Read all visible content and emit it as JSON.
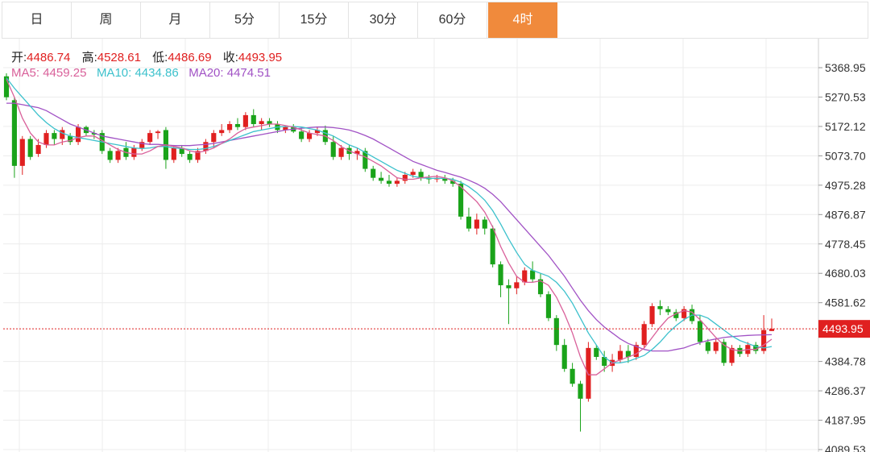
{
  "tabs": [
    {
      "label": "日",
      "active": false
    },
    {
      "label": "周",
      "active": false
    },
    {
      "label": "月",
      "active": false
    },
    {
      "label": "5分",
      "active": false
    },
    {
      "label": "15分",
      "active": false
    },
    {
      "label": "30分",
      "active": false
    },
    {
      "label": "60分",
      "active": false
    },
    {
      "label": "4时",
      "active": true
    }
  ],
  "ohlc": {
    "open_label": "开:",
    "open": "4486.74",
    "high_label": "高:",
    "high": "4528.61",
    "low_label": "低:",
    "low": "4486.69",
    "close_label": "收:",
    "close": "4493.95"
  },
  "ma": {
    "ma5_label": "MA5: ",
    "ma5": "4459.25",
    "ma5_color": "#d9609a",
    "ma10_label": "MA10: ",
    "ma10": "4434.86",
    "ma10_color": "#3cc1cc",
    "ma20_label": "MA20: ",
    "ma20": "4474.51",
    "ma20_color": "#a152c5"
  },
  "colors": {
    "up": "#e02020",
    "down": "#1aa31a",
    "accent": "#f08a3c"
  },
  "chart_data": {
    "type": "candlestick",
    "ylim": [
      4089.53,
      5418
    ],
    "y_ticks": [
      "5368.95",
      "5270.53",
      "5172.12",
      "5073.70",
      "4975.28",
      "4876.87",
      "4778.45",
      "4680.03",
      "4581.62",
      "4384.78",
      "4286.37",
      "4187.95",
      "4089.53"
    ],
    "current_price": "4493.95",
    "candles": [
      [
        5340,
        5350,
        5260,
        5270
      ],
      [
        5260,
        5270,
        5000,
        5040
      ],
      [
        5040,
        5140,
        5010,
        5130
      ],
      [
        5130,
        5140,
        5060,
        5070
      ],
      [
        5080,
        5130,
        5070,
        5110
      ],
      [
        5110,
        5160,
        5100,
        5150
      ],
      [
        5150,
        5160,
        5110,
        5130
      ],
      [
        5130,
        5170,
        5110,
        5160
      ],
      [
        5140,
        5150,
        5110,
        5120
      ],
      [
        5120,
        5180,
        5110,
        5170
      ],
      [
        5170,
        5175,
        5140,
        5150
      ],
      [
        5150,
        5160,
        5130,
        5145
      ],
      [
        5150,
        5160,
        5080,
        5090
      ],
      [
        5090,
        5100,
        5050,
        5060
      ],
      [
        5060,
        5100,
        5050,
        5090
      ],
      [
        5100,
        5120,
        5060,
        5070
      ],
      [
        5070,
        5110,
        5060,
        5100
      ],
      [
        5100,
        5130,
        5090,
        5120
      ],
      [
        5120,
        5160,
        5110,
        5150
      ],
      [
        5150,
        5160,
        5130,
        5155
      ],
      [
        5160,
        5170,
        5030,
        5060
      ],
      [
        5060,
        5110,
        5050,
        5100
      ],
      [
        5100,
        5110,
        5070,
        5080
      ],
      [
        5080,
        5090,
        5050,
        5060
      ],
      [
        5060,
        5100,
        5050,
        5090
      ],
      [
        5090,
        5130,
        5080,
        5120
      ],
      [
        5120,
        5160,
        5100,
        5150
      ],
      [
        5150,
        5180,
        5140,
        5160
      ],
      [
        5160,
        5190,
        5150,
        5180
      ],
      [
        5180,
        5200,
        5160,
        5170
      ],
      [
        5170,
        5220,
        5160,
        5210
      ],
      [
        5210,
        5230,
        5170,
        5180
      ],
      [
        5180,
        5200,
        5160,
        5190
      ],
      [
        5190,
        5200,
        5170,
        5180
      ],
      [
        5180,
        5190,
        5150,
        5160
      ],
      [
        5160,
        5175,
        5150,
        5170
      ],
      [
        5170,
        5180,
        5150,
        5155
      ],
      [
        5155,
        5165,
        5120,
        5130
      ],
      [
        5130,
        5160,
        5120,
        5150
      ],
      [
        5150,
        5170,
        5140,
        5160
      ],
      [
        5160,
        5175,
        5110,
        5120
      ],
      [
        5120,
        5140,
        5060,
        5070
      ],
      [
        5070,
        5110,
        5060,
        5100
      ],
      [
        5100,
        5110,
        5060,
        5080
      ],
      [
        5080,
        5100,
        5060,
        5090
      ],
      [
        5090,
        5100,
        5020,
        5030
      ],
      [
        5030,
        5040,
        4990,
        5000
      ],
      [
        5000,
        5020,
        4980,
        4990
      ],
      [
        4990,
        5010,
        4970,
        4980
      ],
      [
        4980,
        5000,
        4970,
        4990
      ],
      [
        4990,
        5020,
        4980,
        5010
      ],
      [
        5010,
        5030,
        5000,
        5020
      ],
      [
        5020,
        5030,
        4990,
        5000
      ],
      [
        5000,
        5010,
        4980,
        4995
      ],
      [
        4995,
        5010,
        4985,
        5000
      ],
      [
        5000,
        5010,
        4980,
        4990
      ],
      [
        4990,
        5000,
        4970,
        4980
      ],
      [
        4980,
        4990,
        4860,
        4870
      ],
      [
        4870,
        4900,
        4820,
        4830
      ],
      [
        4830,
        4880,
        4810,
        4860
      ],
      [
        4860,
        4870,
        4810,
        4830
      ],
      [
        4830,
        4840,
        4700,
        4710
      ],
      [
        4710,
        4720,
        4600,
        4640
      ],
      [
        4640,
        4660,
        4510,
        4630
      ],
      [
        4630,
        4670,
        4610,
        4650
      ],
      [
        4650,
        4700,
        4640,
        4690
      ],
      [
        4690,
        4720,
        4650,
        4660
      ],
      [
        4660,
        4680,
        4600,
        4610
      ],
      [
        4610,
        4620,
        4520,
        4530
      ],
      [
        4530,
        4540,
        4420,
        4440
      ],
      [
        4440,
        4460,
        4350,
        4360
      ],
      [
        4360,
        4380,
        4300,
        4310
      ],
      [
        4310,
        4320,
        4150,
        4260
      ],
      [
        4260,
        4450,
        4250,
        4430
      ],
      [
        4430,
        4440,
        4390,
        4400
      ],
      [
        4400,
        4420,
        4350,
        4370
      ],
      [
        4370,
        4410,
        4350,
        4390
      ],
      [
        4390,
        4440,
        4380,
        4420
      ],
      [
        4420,
        4440,
        4380,
        4400
      ],
      [
        4400,
        4450,
        4390,
        4440
      ],
      [
        4440,
        4520,
        4430,
        4510
      ],
      [
        4510,
        4580,
        4500,
        4570
      ],
      [
        4570,
        4590,
        4540,
        4560
      ],
      [
        4560,
        4570,
        4540,
        4550
      ],
      [
        4550,
        4560,
        4520,
        4530
      ],
      [
        4530,
        4570,
        4520,
        4560
      ],
      [
        4560,
        4575,
        4510,
        4520
      ],
      [
        4520,
        4540,
        4440,
        4450
      ],
      [
        4450,
        4460,
        4410,
        4420
      ],
      [
        4420,
        4460,
        4410,
        4450
      ],
      [
        4450,
        4460,
        4370,
        4380
      ],
      [
        4380,
        4440,
        4370,
        4430
      ],
      [
        4430,
        4440,
        4400,
        4410
      ],
      [
        4410,
        4450,
        4400,
        4440
      ],
      [
        4440,
        4450,
        4410,
        4420
      ],
      [
        4420,
        4540,
        4410,
        4490
      ],
      [
        4486.74,
        4528.61,
        4486.69,
        4493.95
      ]
    ],
    "ma5": [
      5330,
      5270,
      5200,
      5150,
      5120,
      5110,
      5110,
      5120,
      5125,
      5135,
      5140,
      5140,
      5125,
      5110,
      5095,
      5085,
      5080,
      5080,
      5090,
      5105,
      5110,
      5105,
      5100,
      5090,
      5085,
      5090,
      5100,
      5115,
      5130,
      5150,
      5165,
      5170,
      5175,
      5180,
      5180,
      5175,
      5170,
      5160,
      5150,
      5145,
      5140,
      5125,
      5105,
      5090,
      5080,
      5070,
      5055,
      5040,
      5020,
      5000,
      4995,
      4995,
      5000,
      5003,
      5005,
      5000,
      4990,
      4970,
      4945,
      4920,
      4885,
      4835,
      4770,
      4715,
      4670,
      4650,
      4650,
      4655,
      4640,
      4600,
      4545,
      4480,
      4400,
      4340,
      4340,
      4360,
      4380,
      4390,
      4400,
      4410,
      4430,
      4465,
      4500,
      4530,
      4545,
      4555,
      4550,
      4525,
      4495,
      4465,
      4440,
      4425,
      4420,
      4425,
      4425,
      4440,
      4459.25
    ],
    "ma10": [
      5335,
      5300,
      5270,
      5240,
      5210,
      5185,
      5165,
      5150,
      5140,
      5135,
      5130,
      5125,
      5120,
      5115,
      5110,
      5105,
      5100,
      5098,
      5100,
      5105,
      5105,
      5100,
      5098,
      5095,
      5095,
      5098,
      5105,
      5115,
      5125,
      5135,
      5145,
      5155,
      5160,
      5165,
      5170,
      5172,
      5172,
      5170,
      5165,
      5160,
      5150,
      5140,
      5125,
      5110,
      5100,
      5085,
      5070,
      5055,
      5040,
      5025,
      5015,
      5005,
      5000,
      4998,
      4998,
      4998,
      4995,
      4985,
      4970,
      4950,
      4925,
      4890,
      4845,
      4795,
      4750,
      4710,
      4690,
      4680,
      4670,
      4650,
      4620,
      4580,
      4530,
      4480,
      4440,
      4400,
      4380,
      4380,
      4385,
      4395,
      4405,
      4425,
      4450,
      4480,
      4505,
      4525,
      4540,
      4540,
      4530,
      4510,
      4490,
      4470,
      4455,
      4445,
      4435,
      4430,
      4434.86
    ],
    "ma20": [
      5250,
      5250,
      5245,
      5240,
      5235,
      5225,
      5210,
      5195,
      5180,
      5170,
      5160,
      5150,
      5140,
      5135,
      5130,
      5125,
      5120,
      5115,
      5112,
      5112,
      5110,
      5108,
      5108,
      5108,
      5110,
      5112,
      5115,
      5120,
      5125,
      5130,
      5135,
      5140,
      5145,
      5150,
      5155,
      5160,
      5163,
      5166,
      5168,
      5170,
      5170,
      5168,
      5165,
      5160,
      5152,
      5142,
      5130,
      5115,
      5100,
      5085,
      5070,
      5055,
      5045,
      5035,
      5025,
      5018,
      5010,
      5002,
      4992,
      4980,
      4965,
      4945,
      4920,
      4890,
      4860,
      4830,
      4800,
      4770,
      4740,
      4705,
      4670,
      4630,
      4590,
      4555,
      4525,
      4500,
      4480,
      4460,
      4445,
      4435,
      4425,
      4420,
      4420,
      4420,
      4425,
      4430,
      4440,
      4448,
      4455,
      4460,
      4465,
      4468,
      4470,
      4472,
      4473,
      4474,
      4474.51
    ]
  }
}
